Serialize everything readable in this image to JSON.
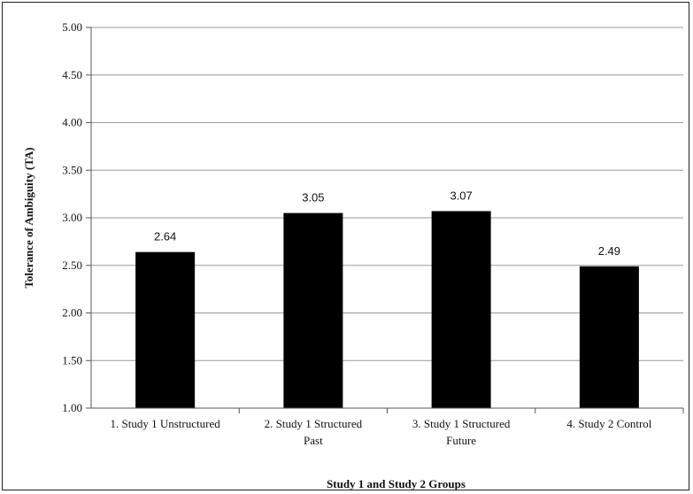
{
  "chart_data": {
    "type": "bar",
    "categories": [
      [
        "1. Study 1 Unstructured"
      ],
      [
        "2. Study 1 Structured",
        "Past"
      ],
      [
        "3. Study 1 Structured",
        "Future"
      ],
      [
        "4. Study 2 Control"
      ]
    ],
    "values": [
      2.64,
      3.05,
      3.07,
      2.49
    ],
    "data_labels": [
      "2.64",
      "3.05",
      "3.07",
      "2.49"
    ],
    "yticks": [
      "1.00",
      "1.50",
      "2.00",
      "2.50",
      "3.00",
      "3.50",
      "4.00",
      "4.50",
      "5.00"
    ],
    "ylim": [
      1.0,
      5.0
    ],
    "xlabel": "Study 1 and Study 2 Groups",
    "ylabel": "Tolerance of Ambiguity (TA)",
    "bar_color": "#000000",
    "grid": true,
    "legend": false
  }
}
